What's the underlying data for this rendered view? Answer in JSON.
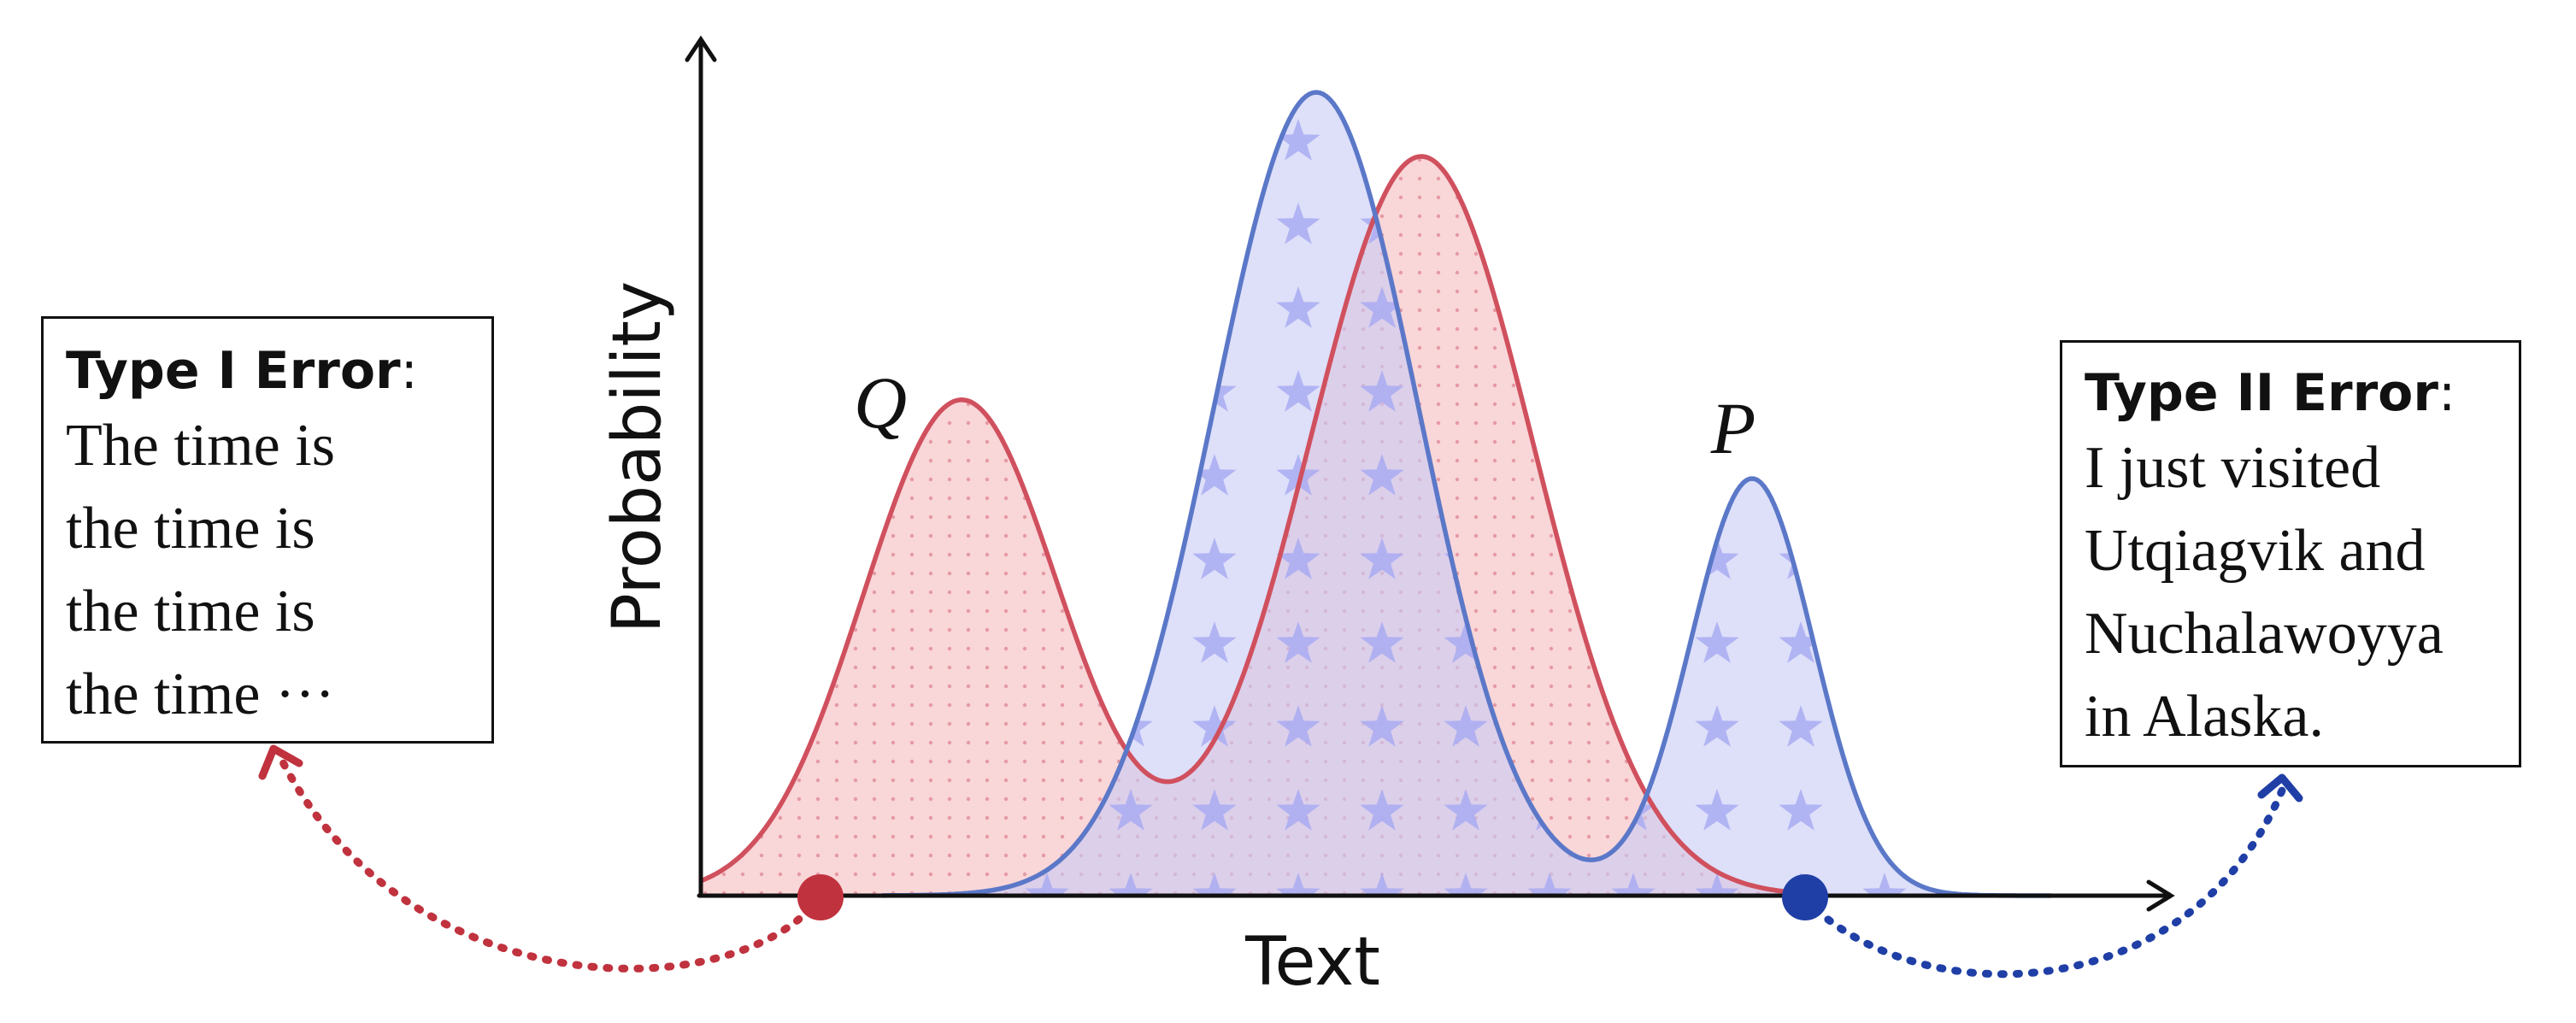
{
  "axes": {
    "x_label": "Text",
    "y_label": "Probability"
  },
  "distributions": {
    "q": {
      "label": "Q",
      "color": "#d0505e",
      "fill": "#f9d6d8"
    },
    "p": {
      "label": "P",
      "color": "#5b78c8",
      "fill": "#c9ccf6",
      "star_color": "#a9acf2"
    }
  },
  "type1": {
    "title": "Type I Error",
    "colon": ":",
    "lines": [
      "The time is",
      "the time is",
      "the time is",
      "the time ···"
    ],
    "marker_color": "#c0323e"
  },
  "type2": {
    "title": "Type II Error",
    "colon": ":",
    "lines": [
      "I just visited",
      "Utqiagvik and",
      "Nuchalawoyya",
      "in Alaska."
    ],
    "marker_color": "#1f3fa6"
  }
}
